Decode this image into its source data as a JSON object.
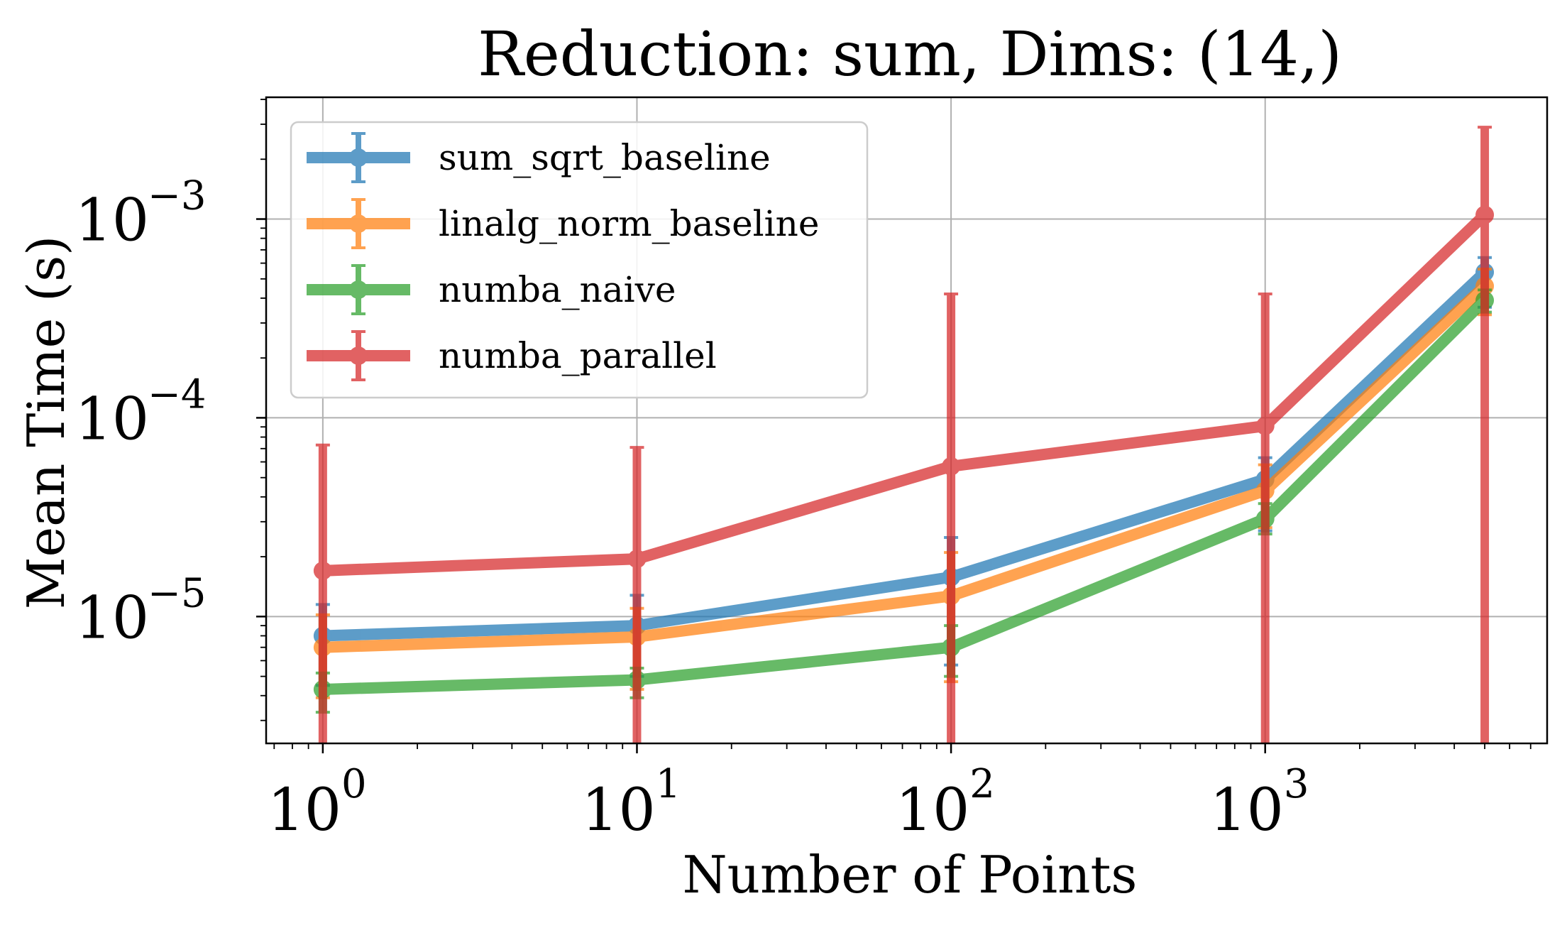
{
  "chart_data": {
    "type": "line",
    "title": "Reduction: sum, Dims: (14,)",
    "xlabel": "Number of Points",
    "ylabel": "Mean Time (s)",
    "xscale": "log",
    "yscale": "log",
    "xlim": [
      0.66,
      7900
    ],
    "ylim": [
      2.3e-06,
      0.0041
    ],
    "grid": true,
    "legend_position": "upper-left",
    "x": [
      1,
      10,
      100,
      1000,
      5000
    ],
    "x_ticks": [
      {
        "value": 1,
        "base": "10",
        "exp": "0"
      },
      {
        "value": 10,
        "base": "10",
        "exp": "1"
      },
      {
        "value": 100,
        "base": "10",
        "exp": "2"
      },
      {
        "value": 1000,
        "base": "10",
        "exp": "3"
      }
    ],
    "y_ticks": [
      {
        "value": 1e-05,
        "base": "10",
        "exp": "−5"
      },
      {
        "value": 0.0001,
        "base": "10",
        "exp": "−4"
      },
      {
        "value": 0.001,
        "base": "10",
        "exp": "−3"
      }
    ],
    "series": [
      {
        "name": "sum_sqrt_baseline",
        "color": "#1f77b4",
        "values": [
          8e-06,
          9e-06,
          1.58e-05,
          4.9e-05,
          0.00054
        ],
        "err_upper": [
          1.15e-05,
          1.28e-05,
          2.5e-05,
          6.3e-05,
          0.00064
        ],
        "err_lower": [
          4.5e-06,
          5e-06,
          5.7e-06,
          2.7e-05,
          0.00036
        ]
      },
      {
        "name": "linalg_norm_baseline",
        "color": "#ff7f0e",
        "values": [
          7e-06,
          7.9e-06,
          1.27e-05,
          4.3e-05,
          0.00046
        ],
        "err_upper": [
          1.02e-05,
          1.1e-05,
          2.1e-05,
          5.8e-05,
          0.00056
        ],
        "err_lower": [
          3.9e-06,
          4.3e-06,
          4.7e-06,
          2.8e-05,
          0.00033
        ]
      },
      {
        "name": "numba_naive",
        "color": "#2ca02c",
        "values": [
          4.3e-06,
          4.8e-06,
          7e-06,
          3.1e-05,
          0.00039
        ],
        "err_upper": [
          5.2e-06,
          5.5e-06,
          9e-06,
          3.7e-05,
          0.00044
        ],
        "err_lower": [
          3.3e-06,
          3.9e-06,
          5e-06,
          2.6e-05,
          0.00034
        ]
      },
      {
        "name": "numba_parallel",
        "color": "#d62728",
        "values": [
          1.7e-05,
          1.95e-05,
          5.7e-05,
          9.1e-05,
          0.00105
        ],
        "err_upper": [
          7.3e-05,
          7.1e-05,
          0.00042,
          0.00042,
          0.0029
        ],
        "err_lower": [
          1e-07,
          1e-07,
          1e-07,
          1e-07,
          1e-07
        ]
      }
    ]
  }
}
